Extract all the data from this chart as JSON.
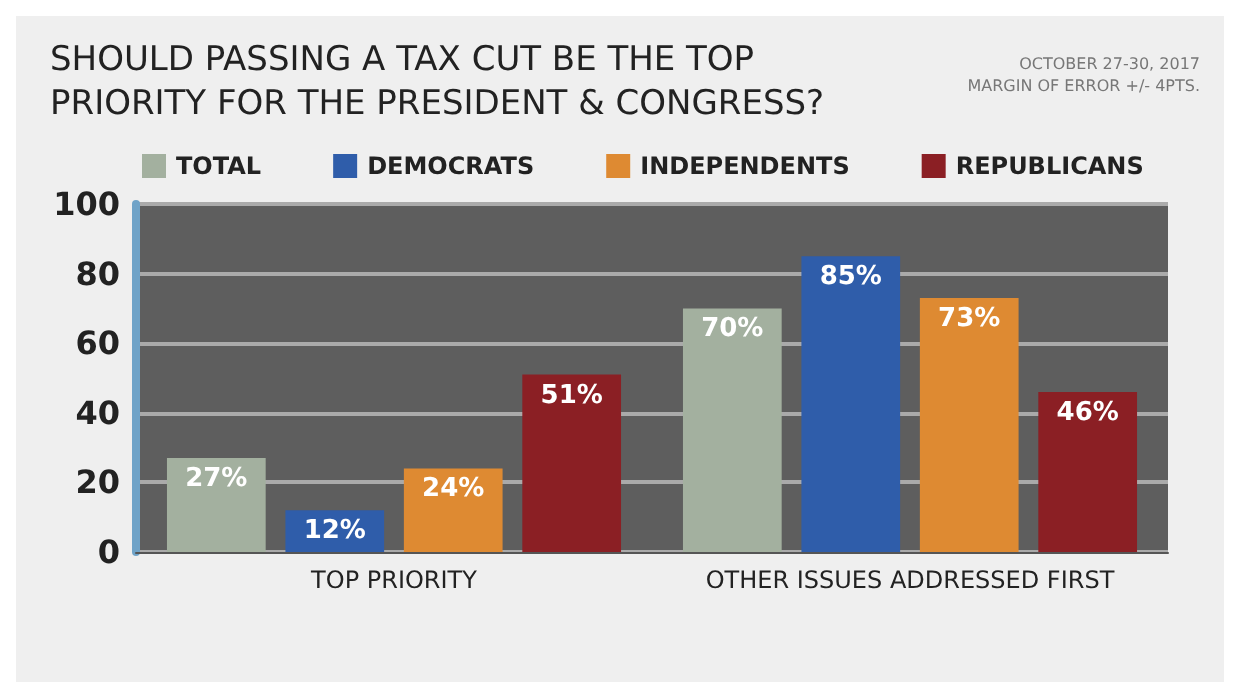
{
  "chart_data": {
    "type": "bar",
    "title": "SHOULD PASSING A TAX CUT BE THE TOP\nPRIORITY FOR THE PRESIDENT & CONGRESS?",
    "annotations": [
      "OCTOBER 27-30, 2017",
      "MARGIN OF ERROR +/- 4PTS."
    ],
    "categories": [
      "TOP PRIORITY",
      "OTHER ISSUES ADDRESSED FIRST"
    ],
    "series": [
      {
        "name": "TOTAL",
        "color": "#a3b09f",
        "values": [
          27,
          70
        ],
        "value_labels": [
          "27%",
          "70%"
        ]
      },
      {
        "name": "DEMOCRATS",
        "color": "#2f5daa",
        "values": [
          12,
          85
        ],
        "value_labels": [
          "12%",
          "85%"
        ]
      },
      {
        "name": "INDEPENDENTS",
        "color": "#de8a32",
        "values": [
          24,
          73
        ],
        "value_labels": [
          "24%",
          "73%"
        ]
      },
      {
        "name": "REPUBLICANS",
        "color": "#8b1f24",
        "values": [
          51,
          46
        ],
        "value_labels": [
          "51%",
          "46%"
        ]
      }
    ],
    "ylim": [
      0,
      100
    ],
    "yticks": [
      0,
      20,
      40,
      60,
      80,
      100
    ],
    "grid": "y",
    "legend": "top"
  }
}
